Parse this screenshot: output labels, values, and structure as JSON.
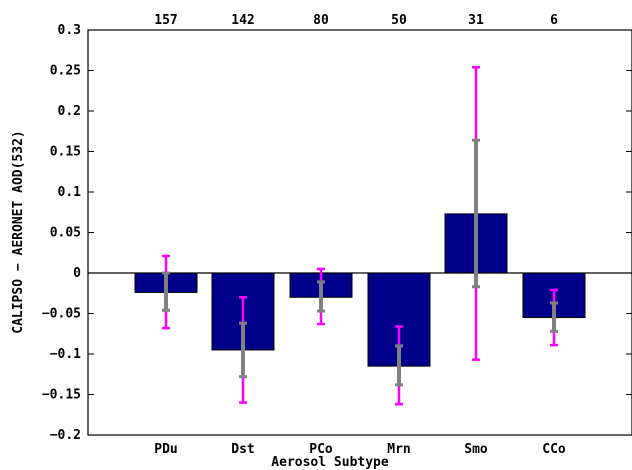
{
  "chart_data": {
    "type": "bar",
    "title": "",
    "xlabel": "Aerosol Subtype",
    "ylabel": "CALIPSO − AERONET AOD(532)",
    "ylim": [
      -0.2,
      0.3
    ],
    "yticks": [
      0.3,
      0.25,
      0.2,
      0.15,
      0.1,
      0.05,
      0,
      -0.05,
      -0.1,
      -0.15,
      -0.2
    ],
    "ytick_labels": [
      "0.3",
      "0.25",
      "0.2",
      "0.15",
      "0.1",
      "0.05",
      "0",
      "−0.05",
      "−0.1",
      "−0.15",
      "−0.2"
    ],
    "grid": false,
    "categories": [
      "PDu",
      "Dst",
      "PCo",
      "Mrn",
      "Smo",
      "CCo"
    ],
    "counts": [
      "157",
      "142",
      "80",
      "50",
      "31",
      "6"
    ],
    "values": [
      -0.024,
      -0.095,
      -0.03,
      -0.115,
      0.073,
      -0.055
    ],
    "inner_error": {
      "lower": [
        -0.046,
        -0.128,
        -0.047,
        -0.138,
        -0.017,
        -0.072
      ],
      "upper": [
        0.0,
        -0.062,
        -0.011,
        -0.09,
        0.164,
        -0.037
      ]
    },
    "outer_error": {
      "lower": [
        -0.068,
        -0.16,
        -0.063,
        -0.162,
        -0.107,
        -0.089
      ],
      "upper": [
        0.021,
        -0.03,
        0.005,
        -0.066,
        0.254,
        -0.021
      ]
    },
    "colors": {
      "bar": "#00008b",
      "inner_error": "#808080",
      "outer_error": "#ff00ff",
      "axis": "#000000"
    }
  }
}
